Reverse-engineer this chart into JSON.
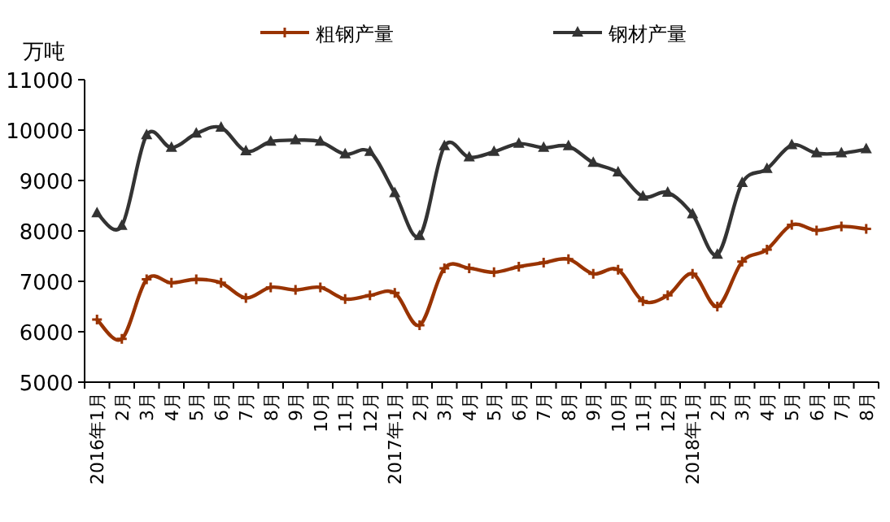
{
  "chart_data": {
    "type": "line",
    "ylabel": "万吨",
    "categories": [
      "2016年1月",
      "2月",
      "3月",
      "4月",
      "5月",
      "6月",
      "7月",
      "8月",
      "9月",
      "10月",
      "11月",
      "12月",
      "2017年1月",
      "2月",
      "3月",
      "4月",
      "5月",
      "6月",
      "7月",
      "8月",
      "9月",
      "10月",
      "11月",
      "12月",
      "2018年1月",
      "2月",
      "3月",
      "4月",
      "5月",
      "6月",
      "7月",
      "8月"
    ],
    "series": [
      {
        "name": "粗钢产量",
        "color": "#993300",
        "marker": "cross",
        "values": [
          6240,
          5860,
          7040,
          6970,
          7040,
          6970,
          6670,
          6880,
          6830,
          6880,
          6650,
          6720,
          6770,
          6130,
          7260,
          7260,
          7180,
          7290,
          7370,
          7440,
          7150,
          7230,
          6610,
          6720,
          7150,
          6500,
          7390,
          7630,
          8120,
          8010,
          8090,
          8040
        ]
      },
      {
        "name": "钢材产量",
        "color": "#333333",
        "marker": "triangle",
        "values": [
          8350,
          8100,
          9900,
          9650,
          9930,
          10050,
          9580,
          9770,
          9800,
          9770,
          9520,
          9570,
          8750,
          7900,
          9680,
          9460,
          9570,
          9730,
          9650,
          9680,
          9350,
          9160,
          8680,
          8760,
          8330,
          7530,
          8950,
          9230,
          9700,
          9540,
          9540,
          9620
        ]
      }
    ],
    "ylim": [
      5000,
      11000
    ],
    "yticks": [
      5000,
      6000,
      7000,
      8000,
      9000,
      10000,
      11000
    ],
    "grid": false,
    "legend": "top",
    "line_style": "solid"
  }
}
